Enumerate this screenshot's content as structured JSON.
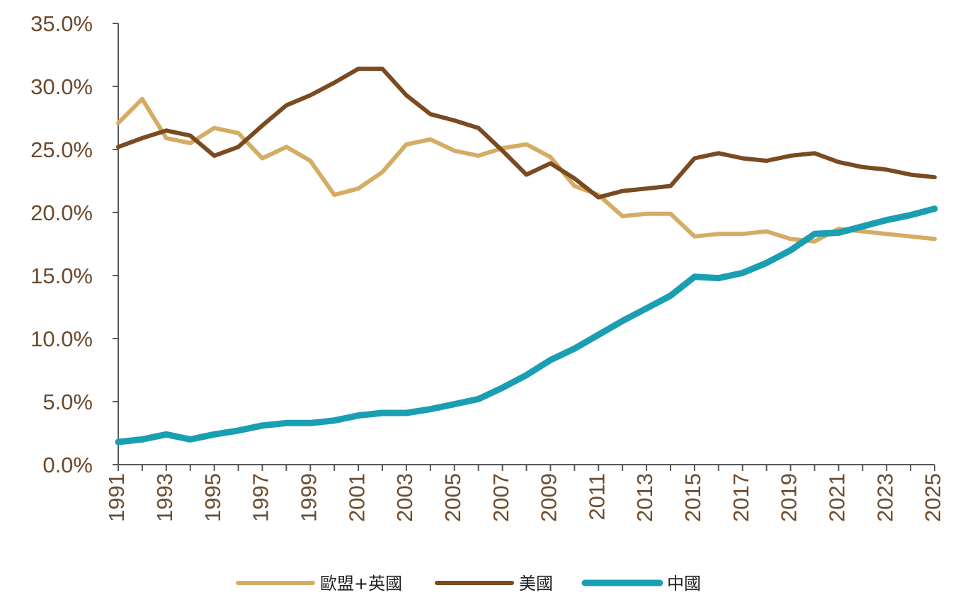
{
  "chart_data": {
    "type": "line",
    "title": "",
    "xlabel": "",
    "ylabel": "",
    "x": [
      1991,
      1992,
      1993,
      1994,
      1995,
      1996,
      1997,
      1998,
      1999,
      2000,
      2001,
      2002,
      2003,
      2004,
      2005,
      2006,
      2007,
      2008,
      2009,
      2010,
      2011,
      2012,
      2013,
      2014,
      2015,
      2016,
      2017,
      2018,
      2019,
      2020,
      2021,
      2022,
      2023,
      2024,
      2025
    ],
    "x_tick_labels": [
      "1991",
      "1993",
      "1995",
      "1997",
      "1999",
      "2001",
      "2003",
      "2005",
      "2007",
      "2009",
      "2011",
      "2013",
      "2015",
      "2017",
      "2019",
      "2021",
      "2023",
      "2025"
    ],
    "ylim": [
      0,
      35
    ],
    "y_tick_labels": [
      "0.0%",
      "5.0%",
      "10.0%",
      "15.0%",
      "20.0%",
      "25.0%",
      "30.0%",
      "35.0%"
    ],
    "grid": false,
    "legend_position": "bottom",
    "series": [
      {
        "name": "歐盟+英國",
        "color": "#d4ac63",
        "values": [
          27.1,
          29.0,
          25.9,
          25.5,
          26.7,
          26.3,
          24.3,
          25.2,
          24.1,
          21.4,
          21.9,
          23.2,
          25.4,
          25.8,
          24.9,
          24.5,
          25.1,
          25.4,
          24.4,
          22.1,
          21.4,
          19.7,
          19.9,
          19.9,
          18.1,
          18.3,
          18.3,
          18.5,
          17.9,
          17.7,
          18.7,
          18.5,
          18.3,
          18.1,
          17.9
        ]
      },
      {
        "name": "美國",
        "color": "#7a4a21",
        "values": [
          25.2,
          25.9,
          26.5,
          26.1,
          24.5,
          25.2,
          26.9,
          28.5,
          29.3,
          30.3,
          31.4,
          31.4,
          29.3,
          27.8,
          27.3,
          26.7,
          24.9,
          23.0,
          23.9,
          22.7,
          21.2,
          21.7,
          21.9,
          22.1,
          24.3,
          24.7,
          24.3,
          24.1,
          24.5,
          24.7,
          24.0,
          23.6,
          23.4,
          23.0,
          22.8
        ]
      },
      {
        "name": "中國",
        "color": "#1a9fb2",
        "values": [
          1.8,
          2.0,
          2.4,
          2.0,
          2.4,
          2.7,
          3.1,
          3.3,
          3.3,
          3.5,
          3.9,
          4.1,
          4.1,
          4.4,
          4.8,
          5.2,
          6.1,
          7.1,
          8.3,
          9.2,
          10.3,
          11.4,
          12.4,
          13.4,
          14.9,
          14.8,
          15.2,
          16.0,
          17.0,
          18.3,
          18.4,
          18.9,
          19.4,
          19.8,
          20.3
        ]
      }
    ]
  }
}
